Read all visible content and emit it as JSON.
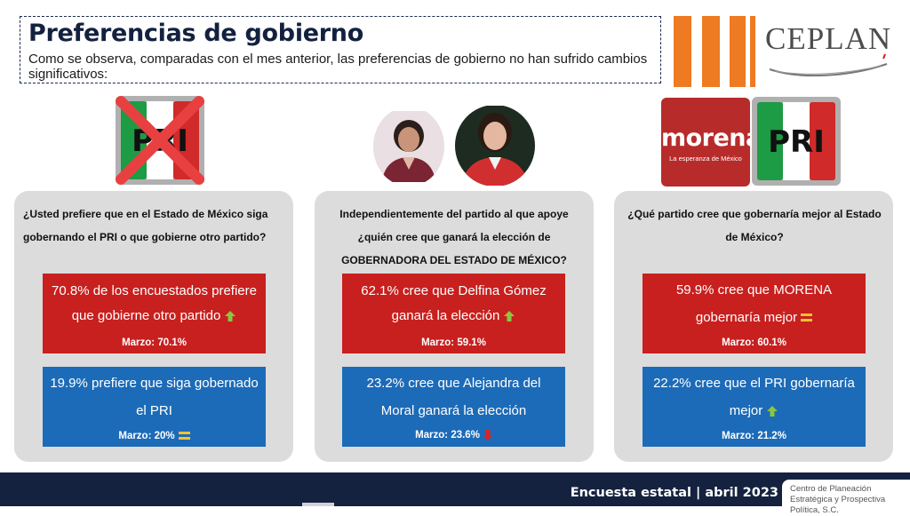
{
  "header": {
    "title": "Preferencias de gobierno",
    "subtitle": "Como se observa, comparadas con el mes anterior, las preferencias de gobierno no han sufrido cambios significativos:"
  },
  "brand": {
    "name": "CEPLAN",
    "accent_color": "#ee7a22"
  },
  "logos": {
    "pri_left": "PRI",
    "morena_word": "morena",
    "morena_tagline": "La esperanza de México",
    "pri_right": "PRI"
  },
  "colors": {
    "red_box": "#c8201e",
    "blue_box": "#1c6bb8",
    "card_bg": "#dcdcdc",
    "navy": "#14223f",
    "indicator_up": "#8cc63f",
    "indicator_equal": "#f2c231",
    "indicator_down": "#e02020"
  },
  "columns": [
    {
      "question": "¿Usted prefiere que en el Estado de México siga gobernando el PRI o que gobierne otro partido?",
      "top_box": {
        "text": "70.8% de los encuestados prefiere que gobierne otro partido",
        "indicator": "up-arrow",
        "march": "Marzo: 70.1%"
      },
      "bottom_box": {
        "text": "19.9% prefiere que siga gobernado el PRI",
        "indicator": "equal-sign",
        "march": "Marzo: 20%"
      }
    },
    {
      "question_line1": "Independientemente del partido al que apoye",
      "question_line2": "¿quién cree que ganará la elección de",
      "question_line3": "GOBERNADORA DEL ESTADO DE MÉXICO?",
      "top_box": {
        "text": "62.1% cree que Delfina Gómez ganará la elección",
        "indicator": "up-arrow",
        "march": "Marzo: 59.1%"
      },
      "bottom_box": {
        "text": "23.2% cree que Alejandra del Moral ganará la elección",
        "indicator": "down-arrow",
        "march": "Marzo: 23.6%"
      }
    },
    {
      "question": "¿Qué partido cree que gobernaría mejor al Estado de México?",
      "top_box": {
        "text": "59.9% cree que MORENA gobernaría mejor",
        "indicator": "equal-sign",
        "march": "Marzo: 60.1%"
      },
      "bottom_box": {
        "text": "22.2% cree que el PRI gobernaría mejor",
        "indicator": "up-arrow",
        "march": "Marzo: 21.2%"
      }
    }
  ],
  "footer": {
    "survey": "Encuesta estatal | abril 2023",
    "organization": "Centro de Planeación Estratégica y Prospectiva Política, S.C."
  }
}
